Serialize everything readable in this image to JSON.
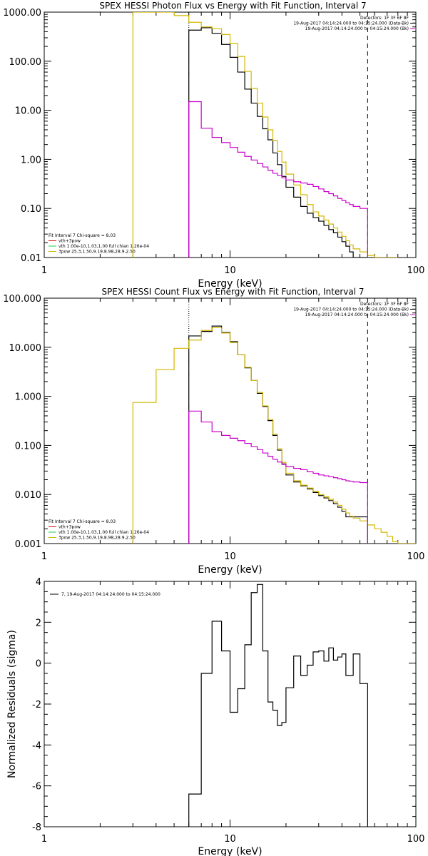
{
  "chart_data": [
    {
      "type": "line",
      "title": "SPEX HESSI Photon Flux vs Energy with Fit Function, Interval 7",
      "xlabel": "Energy (keV)",
      "ylabel": "",
      "xscale": "log",
      "yscale": "log",
      "xlim": [
        1,
        100
      ],
      "ylim": [
        0.01,
        1000
      ],
      "x_ticks": [
        {
          "value": 1,
          "label": "1"
        },
        {
          "value": 10,
          "label": "10"
        },
        {
          "value": 100,
          "label": "100"
        }
      ],
      "y_ticks": [
        {
          "value": 1000,
          "label": "1000.00"
        },
        {
          "value": 100,
          "label": "100.00"
        },
        {
          "value": 10,
          "label": "10.00"
        },
        {
          "value": 1,
          "label": "1.00"
        },
        {
          "value": 0.1,
          "label": "0.10"
        },
        {
          "value": 0.01,
          "label": "0.01"
        }
      ],
      "annotation_lines": [
        "Detectors: 1F 3F 6F 8F",
        "19-Aug-2017 04:14:24.000 to 04:15:24.000 (Data-Bk)",
        "19-Aug-2017 04:14:24.000 to 04:15:24.000 (Bk)"
      ],
      "legend_lines": [
        "Fit Interval 7   Chi-square = 8.03",
        "vth+3pow",
        "vth 1.00e-10,1.03,1.00  full chian 1.26e-04",
        "3pow 25.3,1.50,9.19,8.98,28.9,2.50"
      ],
      "vlines": [
        {
          "x": 6.0,
          "style": "dotted"
        },
        {
          "x": 55.0,
          "style": "dashed"
        }
      ],
      "edges": [
        3,
        4,
        5,
        6,
        7,
        8,
        9,
        10,
        11,
        12,
        13,
        14,
        15,
        16,
        17,
        18,
        19,
        20,
        22,
        24,
        26,
        28,
        30,
        32,
        34,
        36,
        38,
        40,
        42,
        44,
        46,
        50,
        55,
        60,
        65,
        70,
        75,
        80
      ],
      "series": [
        {
          "color": "#000000",
          "start_bin": 3,
          "values": [
            430,
            480,
            370,
            220,
            120,
            60,
            27,
            14,
            7.5,
            4.2,
            2.5,
            1.35,
            0.78,
            0.45,
            0.27,
            0.17,
            0.11,
            0.08,
            0.065,
            0.055,
            0.045,
            0.037,
            0.032,
            0.026,
            0.021,
            0.017,
            0.013,
            0.01,
            0.01
          ]
        },
        {
          "color": "#d4b800",
          "start_bin": 0,
          "values": [
            1000,
            1000,
            850,
            620,
            500,
            460,
            350,
            230,
            125,
            62,
            28,
            14,
            7.3,
            4,
            2.4,
            1.45,
            0.88,
            0.5,
            0.3,
            0.19,
            0.12,
            0.085,
            0.07,
            0.058,
            0.048,
            0.04,
            0.033,
            0.027,
            0.022,
            0.018,
            0.015,
            0.013,
            0.011,
            0.01,
            0.01,
            0.01,
            0.01
          ]
        },
        {
          "color": "#cc00cc",
          "start_bin": 3,
          "values": [
            15,
            4.3,
            2.8,
            2.2,
            1.75,
            1.4,
            1.15,
            0.97,
            0.82,
            0.7,
            0.6,
            0.52,
            0.47,
            0.42,
            0.38,
            0.35,
            0.33,
            0.31,
            0.28,
            0.25,
            0.22,
            0.2,
            0.18,
            0.16,
            0.145,
            0.13,
            0.12,
            0.11,
            0.1
          ]
        }
      ]
    },
    {
      "type": "line",
      "title": "SPEX HESSI Count Flux vs Energy with Fit Function, Interval 7",
      "xlabel": "Energy (keV)",
      "ylabel": "",
      "xscale": "log",
      "yscale": "log",
      "xlim": [
        1,
        100
      ],
      "ylim": [
        0.001,
        100
      ],
      "x_ticks": [
        {
          "value": 1,
          "label": "1"
        },
        {
          "value": 10,
          "label": "10"
        },
        {
          "value": 100,
          "label": "100"
        }
      ],
      "y_ticks": [
        {
          "value": 100,
          "label": "100.000"
        },
        {
          "value": 10,
          "label": "10.000"
        },
        {
          "value": 1,
          "label": "1.000"
        },
        {
          "value": 0.1,
          "label": "0.100"
        },
        {
          "value": 0.01,
          "label": "0.010"
        },
        {
          "value": 0.001,
          "label": "0.001"
        }
      ],
      "annotation_lines": [
        "Detectors: 1F 3F 6F 8F",
        "19-Aug-2017 04:14:24.000 to 04:15:24.000 (Data-Bk)",
        "19-Aug-2017 04:14:24.000 to 04:15:24.000 (Bk)"
      ],
      "legend_lines": [
        "Fit Interval 7   Chi-square = 8.03",
        "vth+3pow",
        "vth 1.00e-10,1.03,1.00  full chian 1.26e-04",
        "3pow 25.3,1.50,9.19,8.98,28.9,2.50"
      ],
      "vlines": [
        {
          "x": 6.0,
          "style": "dotted"
        },
        {
          "x": 55.0,
          "style": "dashed"
        }
      ],
      "edges": [
        3,
        4,
        5,
        6,
        7,
        8,
        9,
        10,
        11,
        12,
        13,
        14,
        15,
        16,
        17,
        18,
        19,
        20,
        22,
        24,
        26,
        28,
        30,
        32,
        34,
        36,
        38,
        40,
        42,
        44,
        46,
        50,
        55,
        60,
        65,
        70,
        75,
        80,
        90,
        100
      ],
      "series": [
        {
          "color": "#000000",
          "start_bin": 3,
          "values": [
            17,
            21,
            27,
            20,
            13,
            7,
            3.8,
            2.1,
            1.15,
            0.62,
            0.32,
            0.16,
            0.08,
            0.042,
            0.025,
            0.018,
            0.015,
            0.013,
            0.011,
            0.0095,
            0.0085,
            0.0075,
            0.0065,
            0.0055,
            0.0045,
            0.0035,
            0.0035,
            0.0035,
            0.0035
          ]
        },
        {
          "color": "#d4b800",
          "start_bin": 0,
          "values": [
            0.75,
            3.5,
            9.5,
            14,
            22,
            25,
            19.5,
            12.5,
            7,
            3.9,
            2.1,
            1.2,
            0.64,
            0.34,
            0.17,
            0.085,
            0.045,
            0.027,
            0.019,
            0.0155,
            0.0135,
            0.0115,
            0.01,
            0.009,
            0.008,
            0.007,
            0.006,
            0.005,
            0.0042,
            0.0036,
            0.0033,
            0.0029,
            0.0024,
            0.002,
            0.0017,
            0.0014,
            0.0011,
            0.001,
            0.001
          ]
        },
        {
          "color": "#cc00cc",
          "start_bin": 3,
          "values": [
            0.5,
            0.3,
            0.19,
            0.16,
            0.14,
            0.125,
            0.11,
            0.095,
            0.082,
            0.07,
            0.06,
            0.052,
            0.046,
            0.041,
            0.037,
            0.034,
            0.032,
            0.029,
            0.027,
            0.025,
            0.024,
            0.023,
            0.022,
            0.021,
            0.02,
            0.019,
            0.0185,
            0.018,
            0.0175
          ]
        }
      ]
    },
    {
      "type": "line",
      "title": "",
      "xlabel": "Energy (keV)",
      "ylabel": "Normalized Residuals (sigma)",
      "xscale": "log",
      "yscale": "linear",
      "xlim": [
        1,
        100
      ],
      "ylim": [
        -8,
        4
      ],
      "x_ticks": [
        {
          "value": 1,
          "label": "1"
        },
        {
          "value": 10,
          "label": "10"
        },
        {
          "value": 100,
          "label": "100"
        }
      ],
      "y_ticks": [
        {
          "value": 4,
          "label": "4"
        },
        {
          "value": 2,
          "label": "2"
        },
        {
          "value": 0,
          "label": "0"
        },
        {
          "value": -2,
          "label": "-2"
        },
        {
          "value": -4,
          "label": "-4"
        },
        {
          "value": -6,
          "label": "-6"
        },
        {
          "value": -8,
          "label": "-8"
        }
      ],
      "legend_lines": [
        "7, 19-Aug-2017 04:14:24.000 to 04:15:24.000"
      ],
      "edges": [
        6,
        7,
        8,
        9,
        10,
        11,
        12,
        13,
        14,
        15,
        16,
        17,
        18,
        19,
        20,
        22,
        24,
        26,
        28,
        30,
        32,
        34,
        36,
        38,
        40,
        42,
        44,
        46,
        50,
        55
      ],
      "series": [
        {
          "color": "#000000",
          "start_bin": 0,
          "values": [
            -6.4,
            -0.5,
            2.05,
            0.6,
            -2.4,
            -1.25,
            0.9,
            3.45,
            3.85,
            0.6,
            -1.9,
            -2.3,
            -3.05,
            -2.9,
            -1.2,
            0.35,
            -0.6,
            -0.1,
            0.55,
            0.6,
            0.1,
            0.75,
            0.15,
            0.3,
            0.45,
            -0.6,
            -0.6,
            0.45,
            -1.0
          ]
        }
      ]
    }
  ]
}
